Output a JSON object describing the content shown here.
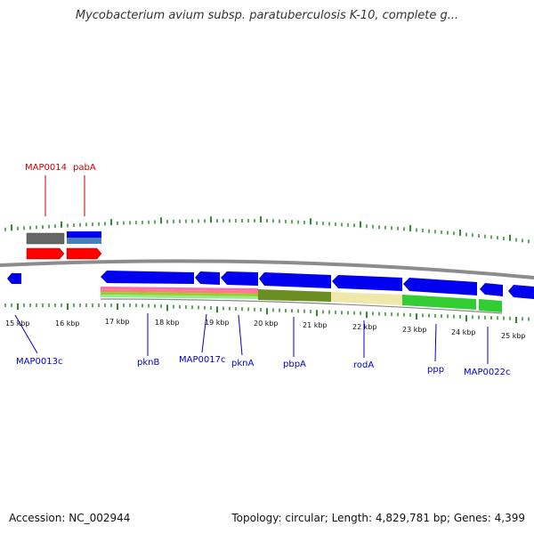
{
  "title": "Mycobacterium avium subsp. paratuberculosis K-10, complete g...",
  "footer": {
    "accession": "Accession: NC_002944",
    "stats": "Topology: circular; Length: 4,829,781 bp; Genes: 4,399"
  },
  "colors": {
    "tick": "#2e8b2e",
    "backbone": "#8c8c8c",
    "forward_gene": "#ff0000",
    "reverse_gene": "#0000ff",
    "forward_label": "#cc0000",
    "reverse_label": "#0000cc",
    "gray_track": "#666666",
    "olive_track": "#6b8e23",
    "khaki_track": "#eee8aa",
    "green_track": "#32cd32"
  },
  "ruler": {
    "labels": [
      "15 kbp",
      "16 kbp",
      "17 kbp",
      "18 kbp",
      "19 kbp",
      "20 kbp",
      "21 kbp",
      "22 kbp",
      "23 kbp",
      "24 kbp",
      "25 kbp"
    ]
  },
  "genes": {
    "forward_labels": [
      "MAP0014",
      "pabA"
    ],
    "reverse_labels": [
      "MAP0013c",
      "pknB",
      "MAP0017c",
      "pknA",
      "pbpA",
      "rodA",
      "ppp",
      "MAP0022c"
    ]
  }
}
